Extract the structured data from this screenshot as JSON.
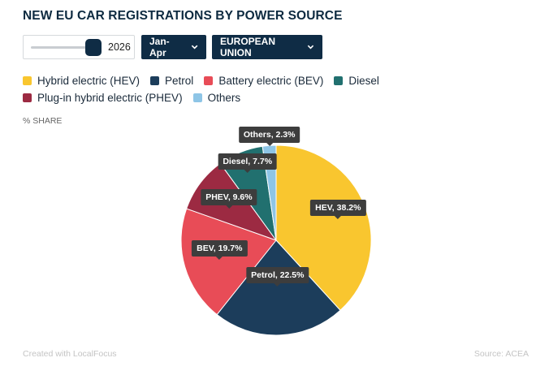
{
  "title": "NEW EU CAR REGISTRATIONS BY POWER SOURCE",
  "controls": {
    "year_slider": {
      "value": "2026"
    },
    "period_dropdown": {
      "selected": "Jan-Apr"
    },
    "region_dropdown": {
      "selected": "EUROPEAN UNION"
    }
  },
  "unit_label": "% SHARE",
  "chart_data": {
    "type": "pie",
    "unit": "% share",
    "categories": [
      "Hybrid electric (HEV)",
      "Petrol",
      "Battery electric (BEV)",
      "Plug-in hybrid electric (PHEV)",
      "Diesel",
      "Others"
    ],
    "values": [
      38.2,
      22.5,
      19.7,
      9.6,
      7.7,
      2.3
    ],
    "slice_labels": [
      "HEV, 38.2%",
      "Petrol, 22.5%",
      "BEV, 19.7%",
      "PHEV, 9.6%",
      "Diesel, 7.7%",
      "Others, 2.3%"
    ],
    "colors": [
      "#f9c62f",
      "#1c3d5b",
      "#e84c57",
      "#9c2a42",
      "#21706f",
      "#8ec5e6"
    ],
    "legend": [
      {
        "label": "Hybrid electric (HEV)",
        "color": "#f9c62f"
      },
      {
        "label": "Petrol",
        "color": "#1c3d5b"
      },
      {
        "label": "Battery electric (BEV)",
        "color": "#e84c57"
      },
      {
        "label": "Diesel",
        "color": "#21706f"
      },
      {
        "label": "Plug-in hybrid electric (PHEV)",
        "color": "#9c2a42"
      },
      {
        "label": "Others",
        "color": "#8ec5e6"
      }
    ],
    "legend_position": "top",
    "start": "12 o'clock, clockwise"
  },
  "footer": {
    "credit": "Created with LocalFocus",
    "source": "Source: ACEA"
  }
}
